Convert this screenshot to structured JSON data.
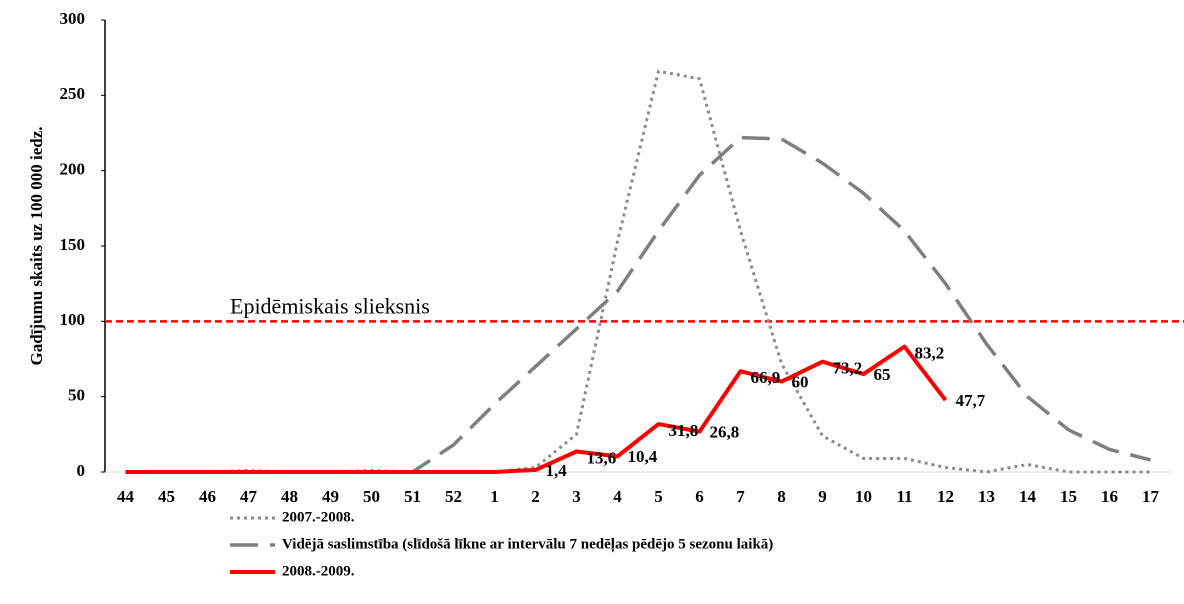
{
  "chart_data": {
    "type": "line",
    "y_label": "Gadījumu skaits uz 100 000 iedz.",
    "categories": [
      "44",
      "45",
      "46",
      "47",
      "48",
      "49",
      "50",
      "51",
      "52",
      "1",
      "2",
      "3",
      "4",
      "5",
      "6",
      "7",
      "8",
      "9",
      "10",
      "11",
      "12",
      "13",
      "14",
      "15",
      "16",
      "17"
    ],
    "series": [
      {
        "name": "2007.-2008.",
        "color": "#8c8c8c",
        "style": "dotted",
        "values": [
          0,
          0,
          0,
          1,
          0,
          0,
          1,
          0,
          0,
          0,
          3,
          25,
          153,
          266,
          261,
          160,
          72,
          24,
          9,
          9,
          3,
          0,
          5,
          0,
          0,
          0
        ]
      },
      {
        "name": "Vidējā saslimstība (slīdošā līkne ar intervālu 7 nedēļas pēdējo 5 sezonu laikā)",
        "color": "#7f7f7f",
        "style": "dashed",
        "values": [
          0,
          0,
          0,
          0,
          0,
          0,
          0,
          0,
          18,
          45,
          70,
          95,
          120,
          160,
          197,
          222,
          221,
          205,
          185,
          160,
          125,
          85,
          50,
          28,
          15,
          8
        ]
      },
      {
        "name": "2008.-2009.",
        "color": "#ff0000",
        "style": "solid",
        "values": [
          0,
          0,
          0,
          0,
          0,
          0,
          0,
          0,
          0,
          0,
          1.4,
          13.6,
          10.4,
          31.8,
          26.8,
          66.9,
          60,
          73.2,
          65,
          83.2,
          47.7,
          null,
          null,
          null,
          null,
          null
        ],
        "value_labels": [
          null,
          null,
          null,
          null,
          null,
          null,
          null,
          null,
          null,
          null,
          "1,4",
          "13,6",
          "10,4",
          "31,8",
          "26,8",
          "66,9",
          "60",
          "73,2",
          "65",
          "83,2",
          "47,7",
          null,
          null,
          null,
          null,
          null
        ]
      }
    ],
    "threshold": {
      "value": 100,
      "label": "Epidēmiskais slieksnis",
      "color": "#ff0000"
    },
    "ylim": [
      0,
      300
    ],
    "yticks": [
      0,
      50,
      100,
      150,
      200,
      250,
      300
    ],
    "grid": false
  }
}
